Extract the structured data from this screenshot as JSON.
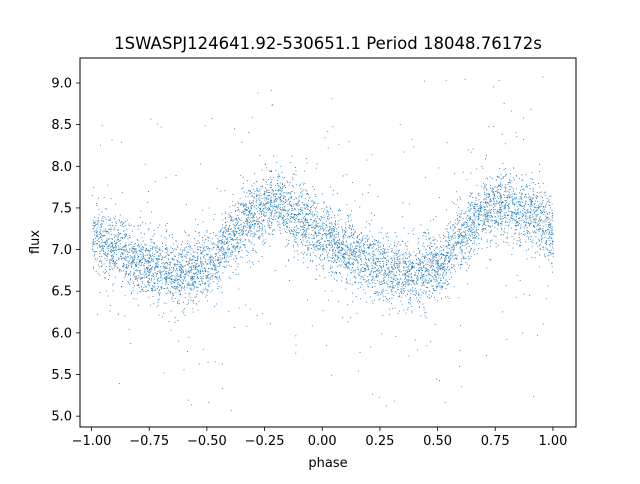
{
  "chart_data": {
    "type": "scatter",
    "title": "1SWASPJ124641.92-530651.1 Period 18048.76172s",
    "xlabel": "phase",
    "ylabel": "flux",
    "xlim": [
      -1.05,
      1.1
    ],
    "ylim": [
      4.87,
      9.3
    ],
    "grid": false,
    "marker_color": "#1f77b4",
    "x_ticks": [
      -1.0,
      -0.75,
      -0.5,
      -0.25,
      0.0,
      0.25,
      0.5,
      0.75,
      1.0
    ],
    "x_tick_labels": [
      "−1.00",
      "−0.75",
      "−0.50",
      "−0.25",
      "0.00",
      "0.25",
      "0.50",
      "0.75",
      "1.00"
    ],
    "y_ticks": [
      5.0,
      5.5,
      6.0,
      6.5,
      7.0,
      7.5,
      8.0,
      8.5,
      9.0
    ],
    "y_tick_labels": [
      "5.0",
      "5.5",
      "6.0",
      "6.5",
      "7.0",
      "7.5",
      "8.0",
      "8.5",
      "9.0"
    ],
    "light_curve_profile": {
      "phase": [
        -1.0,
        -0.9,
        -0.8,
        -0.7,
        -0.6,
        -0.5,
        -0.4,
        -0.3,
        -0.2,
        -0.1,
        0.0,
        0.1,
        0.2,
        0.3,
        0.4,
        0.5,
        0.6,
        0.7,
        0.8,
        0.9,
        1.0
      ],
      "flux": [
        7.2,
        7.0,
        6.85,
        6.75,
        6.72,
        6.8,
        7.15,
        7.45,
        7.55,
        7.4,
        7.2,
        7.0,
        6.85,
        6.75,
        6.72,
        6.8,
        7.15,
        7.45,
        7.55,
        7.4,
        7.2
      ],
      "scatter_sigma": 0.2
    }
  }
}
